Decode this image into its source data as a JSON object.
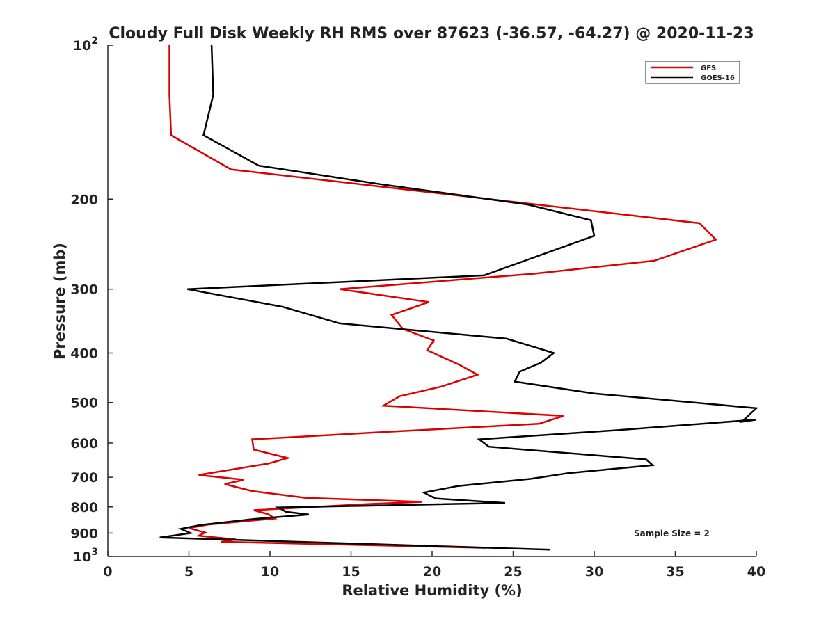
{
  "chart_data": {
    "type": "line",
    "title": "Cloudy Full Disk Weekly RH RMS over 87623 (-36.57, -64.27) @ 2020-11-23",
    "xlabel": "Relative Humidity (%)",
    "ylabel": "Pressure (mb)",
    "xlim": [
      0,
      40
    ],
    "ylim": [
      100,
      1000
    ],
    "y_scale": "log",
    "y_reversed": true,
    "grid": false,
    "legend_position": "top-right",
    "x_ticks": [
      "0",
      "5",
      "10",
      "15",
      "20",
      "25",
      "30",
      "35",
      "40"
    ],
    "y_ticks": [
      {
        "value": 100,
        "base": "10",
        "exp": "2"
      },
      {
        "value": 200,
        "label": "200"
      },
      {
        "value": 300,
        "label": "300"
      },
      {
        "value": 400,
        "label": "400"
      },
      {
        "value": 500,
        "label": "500"
      },
      {
        "value": 600,
        "label": "600"
      },
      {
        "value": 700,
        "label": "700"
      },
      {
        "value": 800,
        "label": "800"
      },
      {
        "value": 900,
        "label": "900"
      },
      {
        "value": 1000,
        "base": "10",
        "exp": "3"
      }
    ],
    "annotation": "Sample Size = 2",
    "series": [
      {
        "name": "GFS",
        "color": "#dd0000",
        "points": [
          [
            3.8,
            100
          ],
          [
            3.8,
            125
          ],
          [
            3.9,
            150
          ],
          [
            7.6,
            175
          ],
          [
            16.8,
            189
          ],
          [
            36.5,
            223
          ],
          [
            37.5,
            240
          ],
          [
            33.7,
            264
          ],
          [
            26.2,
            280
          ],
          [
            14.3,
            300
          ],
          [
            19.8,
            318
          ],
          [
            17.5,
            337
          ],
          [
            18.2,
            359
          ],
          [
            20.1,
            378
          ],
          [
            19.7,
            395
          ],
          [
            21.7,
            422
          ],
          [
            22.8,
            441
          ],
          [
            20.6,
            465
          ],
          [
            18.0,
            486
          ],
          [
            17.0,
            507
          ],
          [
            28.1,
            531
          ],
          [
            26.6,
            550
          ],
          [
            17.4,
            570
          ],
          [
            8.9,
            590
          ],
          [
            9.0,
            618
          ],
          [
            11.1,
            642
          ],
          [
            9.9,
            658
          ],
          [
            5.6,
            693
          ],
          [
            8.4,
            708
          ],
          [
            7.2,
            722
          ],
          [
            8.9,
            745
          ],
          [
            12.2,
            768
          ],
          [
            19.4,
            782
          ],
          [
            16.0,
            790
          ],
          [
            9.0,
            812
          ],
          [
            9.9,
            827
          ],
          [
            10.3,
            843
          ],
          [
            6.2,
            866
          ],
          [
            5.0,
            880
          ],
          [
            6.0,
            898
          ],
          [
            5.6,
            911
          ],
          [
            7.9,
            926
          ],
          [
            7.0,
            936
          ],
          [
            23.3,
            962
          ]
        ]
      },
      {
        "name": "GOES-16",
        "color": "#000000",
        "points": [
          [
            6.4,
            100
          ],
          [
            6.5,
            125
          ],
          [
            5.9,
            150
          ],
          [
            9.3,
            172
          ],
          [
            16.8,
            187
          ],
          [
            25.9,
            205
          ],
          [
            29.8,
            220
          ],
          [
            30.0,
            236
          ],
          [
            26.0,
            262
          ],
          [
            23.2,
            282
          ],
          [
            4.9,
            300
          ],
          [
            10.8,
            325
          ],
          [
            14.3,
            350
          ],
          [
            24.6,
            375
          ],
          [
            27.5,
            400
          ],
          [
            26.7,
            418
          ],
          [
            25.4,
            435
          ],
          [
            25.1,
            455
          ],
          [
            30.0,
            480
          ],
          [
            40.0,
            513
          ],
          [
            39.1,
            545
          ],
          [
            40.0,
            540
          ],
          [
            31.8,
            565
          ],
          [
            22.9,
            590
          ],
          [
            23.5,
            610
          ],
          [
            33.2,
            646
          ],
          [
            33.6,
            663
          ],
          [
            28.4,
            687
          ],
          [
            26.1,
            705
          ],
          [
            21.6,
            728
          ],
          [
            19.5,
            750
          ],
          [
            20.2,
            770
          ],
          [
            24.5,
            786
          ],
          [
            10.5,
            802
          ],
          [
            11.0,
            818
          ],
          [
            12.4,
            828
          ],
          [
            9.0,
            845
          ],
          [
            5.7,
            868
          ],
          [
            4.5,
            883
          ],
          [
            5.1,
            900
          ],
          [
            3.2,
            918
          ],
          [
            27.3,
            970
          ]
        ]
      }
    ]
  }
}
